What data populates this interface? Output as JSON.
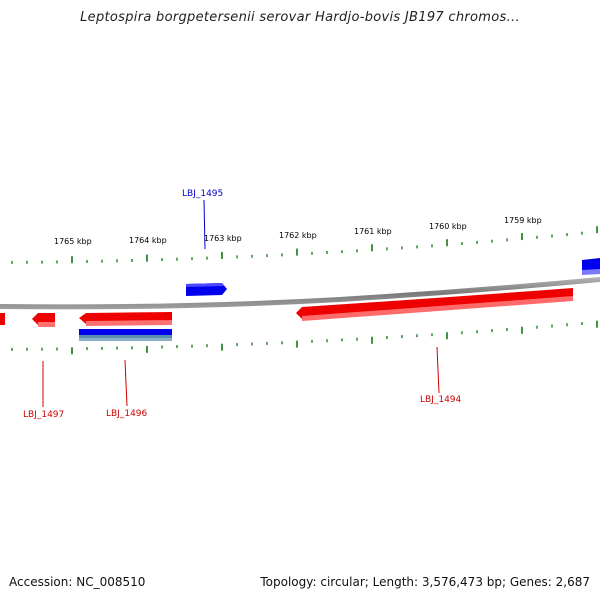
{
  "title": "Leptospira borgpetersenii serovar Hardjo-bovis JB197 chromos...",
  "accession": "Accession: NC_008510",
  "summary": "Topology: circular; Length: 3,576,473 bp; Genes: 2,687",
  "colors": {
    "forward_gene": "#0000ee",
    "reverse_gene": "#ee0000",
    "backbone": "#808080",
    "tick": "#117711",
    "rna_band": "#5a8fb0"
  },
  "kbp_labels": [
    "1765 kbp",
    "1764 kbp",
    "1763 kbp",
    "1762 kbp",
    "1761 kbp",
    "1760 kbp",
    "1759 kbp"
  ],
  "genes": [
    {
      "id": "LBJ_1495",
      "strand": "forward"
    },
    {
      "id": "LBJ_1497",
      "strand": "reverse"
    },
    {
      "id": "LBJ_1496",
      "strand": "reverse"
    },
    {
      "id": "LBJ_1494",
      "strand": "reverse"
    }
  ]
}
